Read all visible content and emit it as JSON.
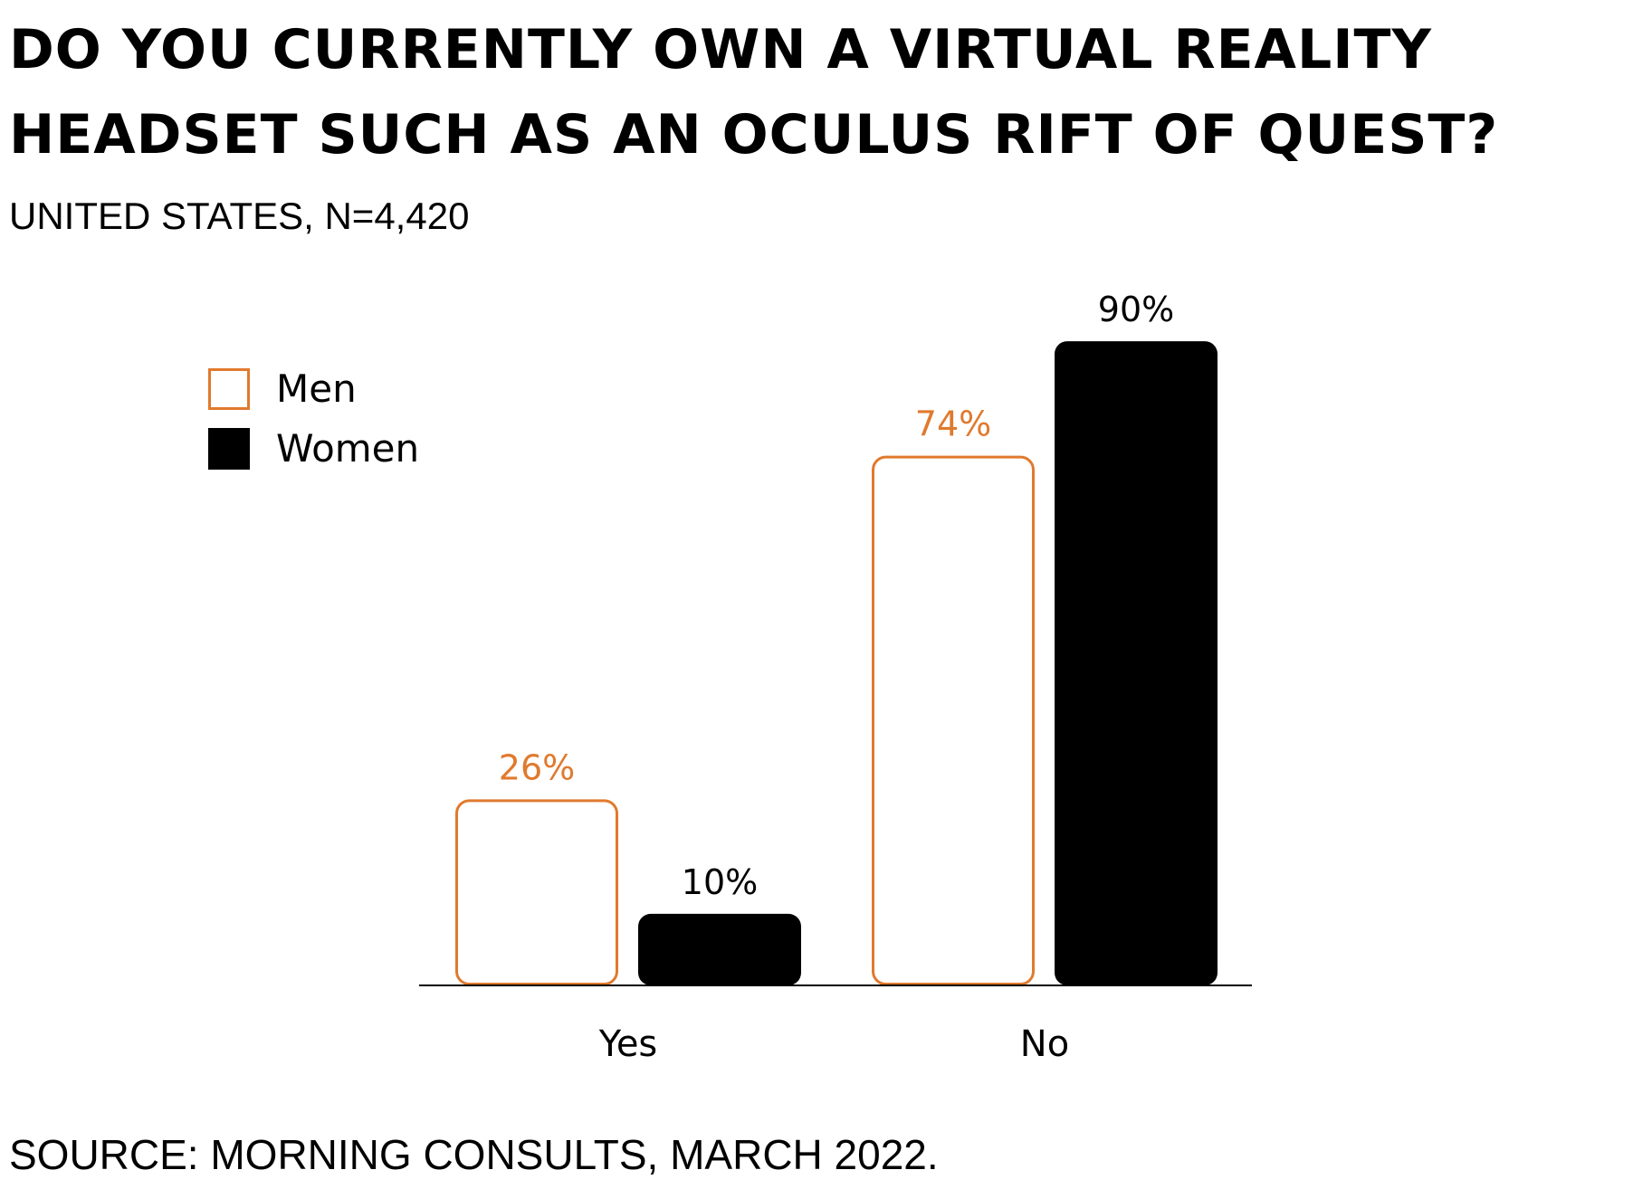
{
  "header": {
    "title_line_1": "DO YOU CURRENTLY OWN A VIRTUAL REALITY",
    "title_line_2": "HEADSET SUCH AS AN OCULUS RIFT OF QUEST?",
    "subtitle": "UNITED STATES, N=4,420"
  },
  "footer": {
    "source": "SOURCE: MORNING CONSULTS, MARCH 2022."
  },
  "colors": {
    "men": "#E07A2E",
    "women": "#000000",
    "axis": "#000000",
    "background": "#FFFFFF"
  },
  "chart_data": {
    "type": "bar",
    "title": "DO YOU CURRENTLY OWN A VIRTUAL REALITY HEADSET SUCH AS AN OCULUS RIFT OF QUEST?",
    "subtitle": "UNITED STATES, N=4,420",
    "categories": [
      "Yes",
      "No"
    ],
    "series": [
      {
        "name": "Men",
        "values": [
          26,
          74
        ],
        "labels": [
          "26%",
          "74%"
        ],
        "style": "outline",
        "color": "#E07A2E"
      },
      {
        "name": "Women",
        "values": [
          10,
          90
        ],
        "labels": [
          "10%",
          "90%"
        ],
        "style": "filled",
        "color": "#000000"
      }
    ],
    "ylim": [
      0,
      90
    ],
    "grid": false,
    "legend": "top-left",
    "xlabel": "",
    "ylabel": ""
  }
}
